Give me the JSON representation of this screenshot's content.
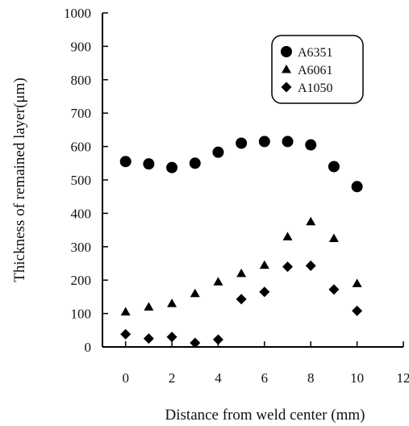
{
  "chart_data": {
    "type": "scatter",
    "xlabel": "Distance from weld center (mm)",
    "ylabel": "Thickness of remained layer(μm)",
    "xlim": [
      -1,
      12
    ],
    "ylim": [
      0,
      1000
    ],
    "xticks": [
      0,
      2,
      4,
      6,
      8,
      10,
      12
    ],
    "yticks": [
      0,
      100,
      200,
      300,
      400,
      500,
      600,
      700,
      800,
      900,
      1000
    ],
    "grid": false,
    "legend_position": "top-right",
    "series": [
      {
        "name": "A6351",
        "marker": "circle",
        "x": [
          0,
          1,
          2,
          3,
          4,
          5,
          6,
          7,
          8,
          9,
          10
        ],
        "y": [
          555,
          548,
          537,
          550,
          583,
          610,
          615,
          615,
          605,
          540,
          480
        ]
      },
      {
        "name": "A6061",
        "marker": "triangle",
        "x": [
          0,
          1,
          2,
          3,
          4,
          5,
          6,
          7,
          8,
          9,
          10
        ],
        "y": [
          105,
          120,
          130,
          160,
          195,
          220,
          245,
          330,
          375,
          325,
          190
        ]
      },
      {
        "name": "A1050",
        "marker": "diamond",
        "x": [
          0,
          1,
          2,
          3,
          4,
          5,
          6,
          7,
          8,
          9,
          10
        ],
        "y": [
          38,
          25,
          30,
          12,
          22,
          143,
          165,
          240,
          243,
          172,
          108
        ]
      }
    ]
  }
}
